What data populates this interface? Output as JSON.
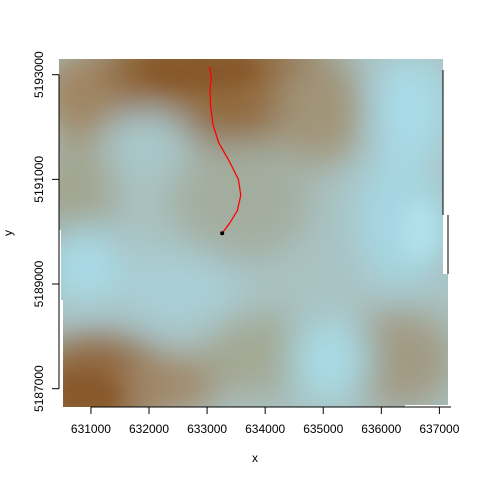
{
  "chart_data": {
    "type": "heatmap",
    "title": "",
    "xlabel": "x",
    "ylabel": "y",
    "xlim": [
      630450,
      637200
    ],
    "ylim": [
      5186650,
      5193300
    ],
    "x_ticks": [
      {
        "value": 631000,
        "label": "631000"
      },
      {
        "value": 632000,
        "label": "632000"
      },
      {
        "value": 633000,
        "label": "633000"
      },
      {
        "value": 634000,
        "label": "634000"
      },
      {
        "value": 635000,
        "label": "635000"
      },
      {
        "value": 636000,
        "label": "636000"
      },
      {
        "value": 637000,
        "label": "637000"
      }
    ],
    "y_ticks": [
      {
        "value": 5187000,
        "label": "5187000"
      },
      {
        "value": 5189000,
        "label": "5189000"
      },
      {
        "value": 5191000,
        "label": "5191000"
      },
      {
        "value": 5193000,
        "label": "5193000"
      }
    ],
    "colors": {
      "terrain_low": "#a6dbe8",
      "terrain_mid": "#9ea592",
      "terrain_high": "#8a5a2b",
      "path": "#ff0000",
      "start_point": "#000000"
    },
    "path": {
      "x": [
        633280,
        633380,
        633520,
        633580,
        633540,
        633380,
        633200,
        633100,
        633060,
        633050,
        633070,
        633040
      ],
      "y": [
        5190000,
        5190150,
        5190400,
        5190700,
        5191000,
        5191350,
        5191700,
        5192050,
        5192400,
        5192700,
        5192950,
        5193150
      ]
    },
    "start_point": {
      "x": 633260,
      "y": 5189970
    }
  }
}
